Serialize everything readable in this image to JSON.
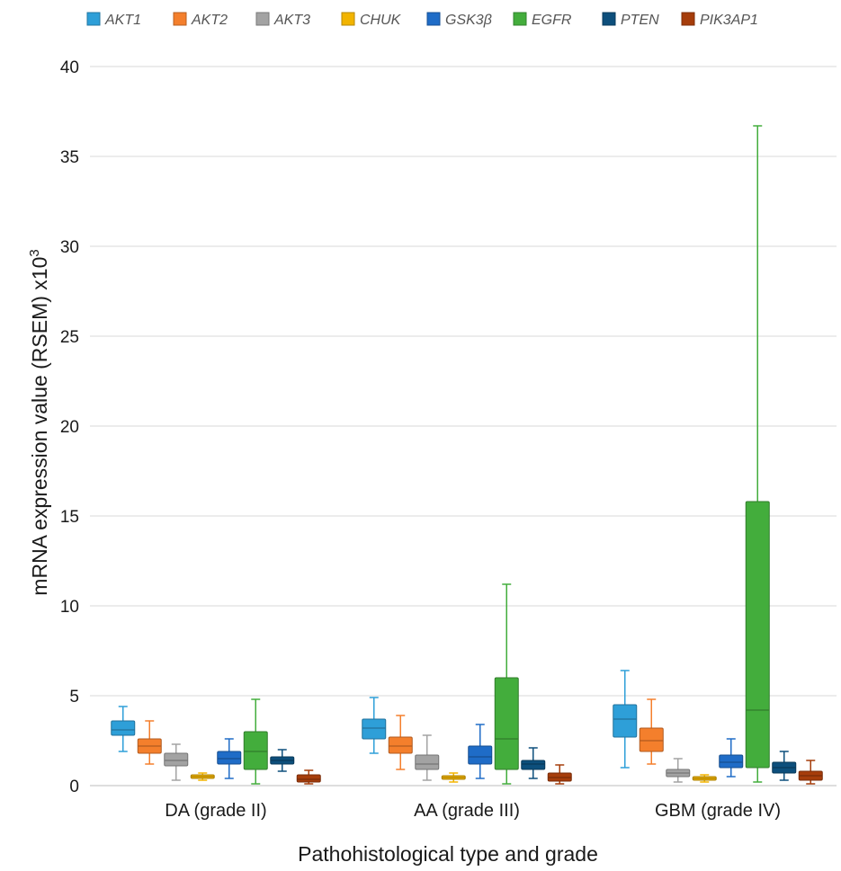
{
  "chart_data": {
    "type": "box",
    "title": "",
    "xlabel": "Pathohistological type and grade",
    "ylabel_main": "mRNA expression value (RSEM) x10",
    "ylabel_sup": "3",
    "ylim": [
      0,
      40
    ],
    "yticks": [
      "0",
      "5",
      "10",
      "15",
      "20",
      "25",
      "30",
      "35",
      "40"
    ],
    "grid": true,
    "legend_position": "top",
    "categories": [
      "DA (grade II)",
      "AA (grade III)",
      "GBM (grade IV)"
    ],
    "series": [
      {
        "name": "AKT1",
        "color": "#2e9fd8",
        "boxes": [
          {
            "min": 1.9,
            "q1": 2.8,
            "median": 3.1,
            "q3": 3.6,
            "max": 4.4
          },
          {
            "min": 1.8,
            "q1": 2.6,
            "median": 3.2,
            "q3": 3.7,
            "max": 4.9
          },
          {
            "min": 1.0,
            "q1": 2.7,
            "median": 3.7,
            "q3": 4.5,
            "max": 6.4
          }
        ]
      },
      {
        "name": "AKT2",
        "color": "#f47f2c",
        "boxes": [
          {
            "min": 1.2,
            "q1": 1.8,
            "median": 2.2,
            "q3": 2.6,
            "max": 3.6
          },
          {
            "min": 0.9,
            "q1": 1.8,
            "median": 2.2,
            "q3": 2.7,
            "max": 3.9
          },
          {
            "min": 1.2,
            "q1": 1.9,
            "median": 2.5,
            "q3": 3.2,
            "max": 4.8
          }
        ]
      },
      {
        "name": "AKT3",
        "color": "#a3a3a3",
        "boxes": [
          {
            "min": 0.3,
            "q1": 1.1,
            "median": 1.4,
            "q3": 1.8,
            "max": 2.3
          },
          {
            "min": 0.3,
            "q1": 0.9,
            "median": 1.2,
            "q3": 1.7,
            "max": 2.8
          },
          {
            "min": 0.2,
            "q1": 0.5,
            "median": 0.7,
            "q3": 0.9,
            "max": 1.5
          }
        ]
      },
      {
        "name": "CHUK",
        "color": "#f2b400",
        "boxes": [
          {
            "min": 0.3,
            "q1": 0.4,
            "median": 0.5,
            "q3": 0.6,
            "max": 0.7
          },
          {
            "min": 0.2,
            "q1": 0.35,
            "median": 0.45,
            "q3": 0.55,
            "max": 0.7
          },
          {
            "min": 0.2,
            "q1": 0.3,
            "median": 0.4,
            "q3": 0.5,
            "max": 0.6
          }
        ]
      },
      {
        "name": "GSK3β",
        "color": "#1f6cc7",
        "boxes": [
          {
            "min": 0.4,
            "q1": 1.2,
            "median": 1.5,
            "q3": 1.9,
            "max": 2.6
          },
          {
            "min": 0.4,
            "q1": 1.2,
            "median": 1.6,
            "q3": 2.2,
            "max": 3.4
          },
          {
            "min": 0.5,
            "q1": 1.0,
            "median": 1.3,
            "q3": 1.7,
            "max": 2.6
          }
        ]
      },
      {
        "name": "EGFR",
        "color": "#43ad3c",
        "boxes": [
          {
            "min": 0.1,
            "q1": 0.9,
            "median": 1.9,
            "q3": 3.0,
            "max": 4.8
          },
          {
            "min": 0.1,
            "q1": 0.9,
            "median": 2.6,
            "q3": 6.0,
            "max": 11.2
          },
          {
            "min": 0.2,
            "q1": 1.0,
            "median": 4.2,
            "q3": 15.8,
            "max": 36.7
          }
        ]
      },
      {
        "name": "PTEN",
        "color": "#0d4f7c",
        "boxes": [
          {
            "min": 0.8,
            "q1": 1.2,
            "median": 1.4,
            "q3": 1.6,
            "max": 2.0
          },
          {
            "min": 0.4,
            "q1": 0.9,
            "median": 1.2,
            "q3": 1.4,
            "max": 2.1
          },
          {
            "min": 0.3,
            "q1": 0.7,
            "median": 1.0,
            "q3": 1.3,
            "max": 1.9
          }
        ]
      },
      {
        "name": "PIK3AP1",
        "color": "#a63d0b",
        "boxes": [
          {
            "min": 0.1,
            "q1": 0.2,
            "median": 0.35,
            "q3": 0.6,
            "max": 0.85
          },
          {
            "min": 0.1,
            "q1": 0.25,
            "median": 0.45,
            "q3": 0.7,
            "max": 1.15
          },
          {
            "min": 0.1,
            "q1": 0.3,
            "median": 0.55,
            "q3": 0.8,
            "max": 1.4
          }
        ]
      }
    ]
  }
}
